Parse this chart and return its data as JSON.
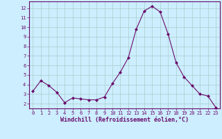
{
  "x": [
    0,
    1,
    2,
    3,
    4,
    5,
    6,
    7,
    8,
    9,
    10,
    11,
    12,
    13,
    14,
    15,
    16,
    17,
    18,
    19,
    20,
    21,
    22,
    23
  ],
  "y": [
    3.3,
    4.4,
    3.9,
    3.2,
    2.1,
    2.6,
    2.5,
    2.4,
    2.4,
    2.7,
    4.1,
    5.3,
    6.8,
    9.8,
    11.7,
    12.2,
    11.6,
    9.3,
    6.3,
    4.8,
    3.9,
    3.0,
    2.8,
    1.6
  ],
  "line_color": "#6a0a6a",
  "marker": "D",
  "marker_size": 2.0,
  "bg_color": "#cceeff",
  "grid_color": "#aacccc",
  "xlabel": "Windchill (Refroidissement éolien,°C)",
  "xlim": [
    -0.5,
    23.5
  ],
  "ylim": [
    1.5,
    12.7
  ],
  "yticks": [
    2,
    3,
    4,
    5,
    6,
    7,
    8,
    9,
    10,
    11,
    12
  ],
  "xticks": [
    0,
    1,
    2,
    3,
    4,
    5,
    6,
    7,
    8,
    9,
    10,
    11,
    12,
    13,
    14,
    15,
    16,
    17,
    18,
    19,
    20,
    21,
    22,
    23
  ],
  "tick_color": "#6a0a6a",
  "tick_fontsize": 5.0,
  "xlabel_fontsize": 6.0,
  "label_color": "#6a0a6a",
  "spine_color": "#6a0a6a"
}
